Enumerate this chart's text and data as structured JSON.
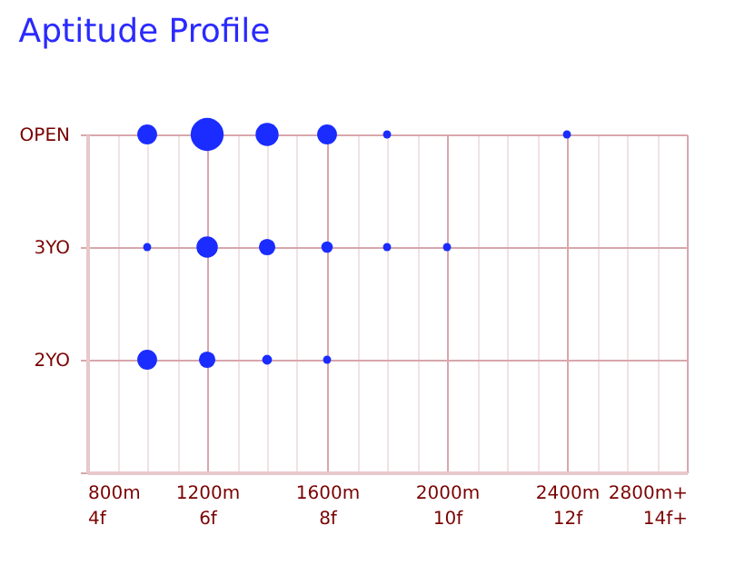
{
  "chart_data": {
    "type": "bubble",
    "title": "Aptitude Profile",
    "orientation": "horizontal",
    "categories": [
      "OPEN",
      "3YO",
      "2YO",
      null
    ],
    "series": [
      {
        "values": [
          1000,
          1000,
          1000,
          null
        ],
        "sizes": [
          0.36,
          0.06,
          0.36,
          null
        ],
        "color": "#1a2cff"
      },
      {
        "values": [
          1200,
          1200,
          1200,
          null
        ],
        "sizes": [
          1,
          0.42,
          0.25,
          null
        ],
        "color": "#1a2cff"
      },
      {
        "values": [
          1400,
          1400,
          1400,
          null
        ],
        "sizes": [
          0.49,
          0.25,
          0.09,
          null
        ],
        "color": "#1a2cff"
      },
      {
        "values": [
          1600,
          1600,
          1600,
          null
        ],
        "sizes": [
          0.36,
          0.12,
          0.06,
          null
        ],
        "color": "#1a2cff"
      },
      {
        "values": [
          1800,
          1800,
          null,
          null
        ],
        "sizes": [
          0.06,
          0.06,
          null,
          null
        ],
        "color": "#1a2cff"
      },
      {
        "values": [
          null,
          2000,
          null,
          null
        ],
        "sizes": [
          null,
          0.06,
          null,
          null
        ],
        "color": "#1a2cff"
      },
      {
        "values": [
          2400,
          null,
          null,
          null
        ],
        "sizes": [
          0.06,
          null,
          null,
          null
        ],
        "color": "#1a2cff"
      }
    ],
    "xlim": [
      800,
      2800
    ],
    "xticks": [
      {
        "value": 800,
        "label": "800m"
      },
      {
        "value": 900,
        "label": null
      },
      {
        "value": 1000,
        "label": null
      },
      {
        "value": 1100,
        "label": null
      },
      {
        "value": 1200,
        "label": "1200m"
      },
      {
        "value": 1300,
        "label": null
      },
      {
        "value": 1400,
        "label": null
      },
      {
        "value": 1500,
        "label": null
      },
      {
        "value": 1600,
        "label": "1600m"
      },
      {
        "value": 1700,
        "label": null
      },
      {
        "value": 1800,
        "label": null
      },
      {
        "value": 1900,
        "label": null
      },
      {
        "value": 2000,
        "label": "2000m"
      },
      {
        "value": 2100,
        "label": null
      },
      {
        "value": 2200,
        "label": null
      },
      {
        "value": 2300,
        "label": null
      },
      {
        "value": 2400,
        "label": "2400m"
      },
      {
        "value": 2500,
        "label": null
      },
      {
        "value": 2600,
        "label": null
      },
      {
        "value": 2700,
        "label": null
      },
      {
        "value": 2800,
        "label": "2800m+"
      }
    ],
    "x2lim": [
      4,
      14
    ],
    "x2ticks": [
      {
        "value": 4,
        "label": "4f"
      },
      {
        "value": 6,
        "label": "6f"
      },
      {
        "value": 8,
        "label": "8f"
      },
      {
        "value": 10,
        "label": "10f"
      },
      {
        "value": 12,
        "label": "12f"
      },
      {
        "value": 14,
        "label": "14f+"
      }
    ],
    "grid": true,
    "legend": false
  }
}
